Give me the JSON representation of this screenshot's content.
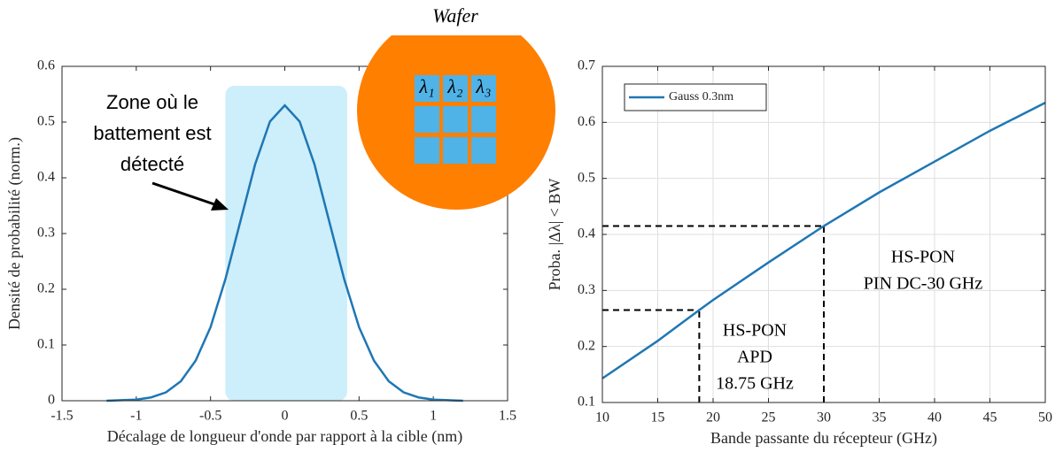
{
  "chart_data": [
    {
      "type": "line",
      "x_label": "Décalage de longueur d'onde par rapport à la cible (nm)",
      "y_label": "Densité de probabilité (norm.)",
      "x": [
        -1.2,
        -1.1,
        -1.0,
        -0.9,
        -0.8,
        -0.7,
        -0.6,
        -0.5,
        -0.4,
        -0.3,
        -0.2,
        -0.1,
        0,
        0.1,
        0.2,
        0.3,
        0.4,
        0.5,
        0.6,
        0.7,
        0.8,
        0.9,
        1.0,
        1.1,
        1.2
      ],
      "series": [
        {
          "color": "#1f77b4",
          "values": [
            0.0,
            0.001,
            0.002,
            0.006,
            0.015,
            0.035,
            0.072,
            0.132,
            0.218,
            0.321,
            0.424,
            0.501,
            0.53,
            0.501,
            0.424,
            0.321,
            0.218,
            0.132,
            0.072,
            0.035,
            0.015,
            0.006,
            0.002,
            0.001,
            0.0
          ]
        }
      ],
      "xlim": [
        -1.5,
        1.5
      ],
      "xticks": [
        -1.5,
        -1,
        -0.5,
        0,
        0.5,
        1,
        1.5
      ],
      "ylim": [
        0,
        0.6
      ],
      "yticks": [
        0,
        0.1,
        0.2,
        0.3,
        0.4,
        0.5,
        0.6
      ],
      "grid": false,
      "shaded_region": {
        "x": [
          -0.4,
          0.42
        ],
        "y": [
          0,
          0.565
        ],
        "color": "#cdeefb"
      },
      "annotation": {
        "lines": [
          "Zone où le",
          "battement est",
          "détecté"
        ]
      },
      "inset": {
        "title": "Wafer",
        "labels": [
          "λ₁",
          "λ₂",
          "λ₃"
        ]
      }
    },
    {
      "type": "line",
      "x_label": "Bande passante du récepteur (GHz)",
      "y_label": "Proba. |Δλ| < BW",
      "x": [
        10,
        15,
        18.75,
        20,
        25,
        30,
        35,
        40,
        45,
        50
      ],
      "series": [
        {
          "name": "Gauss 0.3nm",
          "color": "#1f77b4",
          "values": [
            0.143,
            0.21,
            0.265,
            0.283,
            0.35,
            0.415,
            0.475,
            0.53,
            0.585,
            0.635
          ]
        }
      ],
      "xlim": [
        10,
        50
      ],
      "xticks": [
        10,
        15,
        20,
        25,
        30,
        35,
        40,
        45,
        50
      ],
      "ylim": [
        0.1,
        0.7
      ],
      "yticks": [
        0.1,
        0.2,
        0.3,
        0.4,
        0.5,
        0.6,
        0.7
      ],
      "grid": true,
      "legend": "upper left",
      "reference_points": [
        {
          "x": 18.75,
          "y": 0.265
        },
        {
          "x": 30,
          "y": 0.415
        }
      ],
      "annotations": [
        {
          "lines": [
            "HS-PON",
            "APD",
            "18.75 GHz"
          ]
        },
        {
          "lines": [
            "HS-PON",
            "PIN DC-30 GHz"
          ]
        }
      ]
    }
  ]
}
